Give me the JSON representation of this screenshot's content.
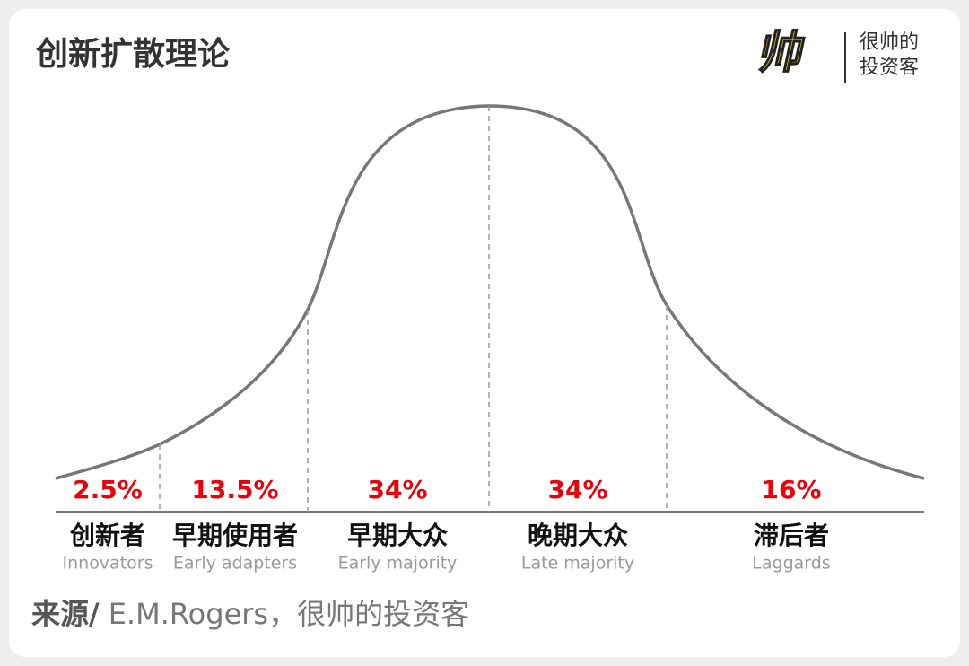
{
  "title": "创新扩散理论",
  "logo": {
    "mark": "帅",
    "line1": "很帅的",
    "line2": "投资客"
  },
  "segments": [
    {
      "percent": "2.5%",
      "name": "创新者",
      "name_en": "Innovators"
    },
    {
      "percent": "13.5%",
      "name": "早期使用者",
      "name_en": "Early adapters"
    },
    {
      "percent": "34%",
      "name": "早期大众",
      "name_en": "Early majority"
    },
    {
      "percent": "34%",
      "name": "晚期大众",
      "name_en": "Late majority"
    },
    {
      "percent": "16%",
      "name": "滞后者",
      "name_en": "Laggards"
    }
  ],
  "source": {
    "label": "来源/",
    "text": "E.M.Rogers，很帅的投资客"
  }
}
